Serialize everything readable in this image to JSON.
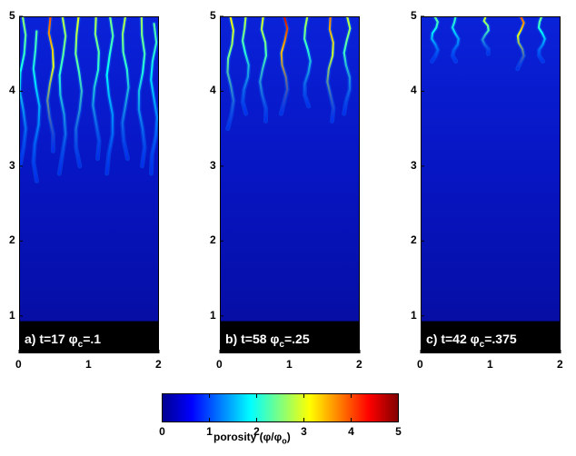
{
  "chart_data": {
    "type": "heatmap",
    "colorbar": {
      "ticks": [
        "0",
        "1",
        "2",
        "3",
        "4",
        "5"
      ],
      "range": [
        0,
        5
      ],
      "label_main": "porosity (",
      "label_phi": "φ",
      "label_slash": "/",
      "label_phi0": "φ",
      "label_sub": "o",
      "label_close": ")"
    },
    "panels": [
      {
        "id": "a",
        "label_prefix": "a) t=17 ",
        "label_phi": "φ",
        "label_sub": "c",
        "label_suffix": "=.1",
        "xlim": [
          0,
          2
        ],
        "ylim": [
          0.5,
          5
        ],
        "xticks": [
          "0",
          "1",
          "2"
        ],
        "yticks": [
          "1",
          "2",
          "3",
          "4",
          "5"
        ],
        "bottom_boundary": 0.93,
        "channels": [
          {
            "x": 0.05,
            "top": 5.0,
            "bottom": 3.0,
            "peak": 2.6
          },
          {
            "x": 0.25,
            "top": 4.8,
            "bottom": 2.8,
            "peak": 2.3
          },
          {
            "x": 0.45,
            "top": 5.0,
            "bottom": 3.2,
            "peak": 4.0
          },
          {
            "x": 0.62,
            "top": 5.0,
            "bottom": 2.9,
            "peak": 2.8
          },
          {
            "x": 0.85,
            "top": 5.0,
            "bottom": 3.0,
            "peak": 3.0
          },
          {
            "x": 1.1,
            "top": 5.0,
            "bottom": 3.1,
            "peak": 2.8
          },
          {
            "x": 1.3,
            "top": 5.0,
            "bottom": 2.9,
            "peak": 2.5
          },
          {
            "x": 1.52,
            "top": 5.0,
            "bottom": 3.1,
            "peak": 2.8
          },
          {
            "x": 1.75,
            "top": 5.0,
            "bottom": 3.0,
            "peak": 2.7
          },
          {
            "x": 1.93,
            "top": 4.9,
            "bottom": 2.9,
            "peak": 2.3
          }
        ]
      },
      {
        "id": "b",
        "label_prefix": "b) t=58 ",
        "label_phi": "φ",
        "label_sub": "c",
        "label_suffix": "=.25",
        "xlim": [
          0,
          2
        ],
        "ylim": [
          0.5,
          5
        ],
        "xticks": [
          "0",
          "1",
          "2"
        ],
        "yticks": [
          "1",
          "2",
          "3",
          "4",
          "5"
        ],
        "bottom_boundary": 0.93,
        "channels": [
          {
            "x": 0.15,
            "top": 5.0,
            "bottom": 3.5,
            "peak": 3.2
          },
          {
            "x": 0.37,
            "top": 5.0,
            "bottom": 3.7,
            "peak": 2.8
          },
          {
            "x": 0.62,
            "top": 5.0,
            "bottom": 3.6,
            "peak": 3.0
          },
          {
            "x": 0.92,
            "top": 5.0,
            "bottom": 3.7,
            "peak": 4.6
          },
          {
            "x": 1.25,
            "top": 5.0,
            "bottom": 3.8,
            "peak": 2.8
          },
          {
            "x": 1.58,
            "top": 5.0,
            "bottom": 3.6,
            "peak": 3.8
          },
          {
            "x": 1.82,
            "top": 5.0,
            "bottom": 3.7,
            "peak": 2.9
          }
        ]
      },
      {
        "id": "c",
        "label_prefix": "c) t=42 ",
        "label_phi": "φ",
        "label_sub": "c",
        "label_suffix": "=.375",
        "xlim": [
          0,
          2
        ],
        "ylim": [
          0.5,
          5
        ],
        "xticks": [
          "0",
          "1",
          "2"
        ],
        "yticks": [
          "1",
          "2",
          "3",
          "4",
          "5"
        ],
        "bottom_boundary": 0.93,
        "channels": [
          {
            "x": 0.2,
            "top": 5.0,
            "bottom": 4.4,
            "peak": 2.4
          },
          {
            "x": 0.5,
            "top": 5.0,
            "bottom": 4.4,
            "peak": 2.2
          },
          {
            "x": 0.93,
            "top": 5.0,
            "bottom": 4.5,
            "peak": 3.0
          },
          {
            "x": 1.43,
            "top": 5.0,
            "bottom": 4.3,
            "peak": 4.0
          },
          {
            "x": 1.73,
            "top": 5.0,
            "bottom": 4.4,
            "peak": 2.5
          }
        ]
      }
    ]
  }
}
